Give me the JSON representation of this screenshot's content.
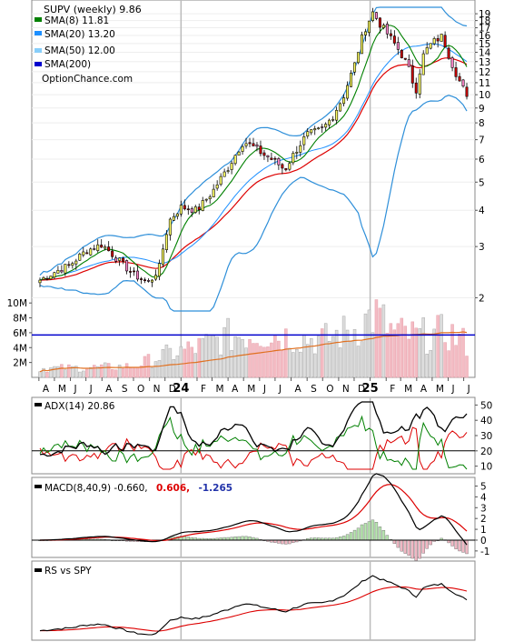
{
  "chart_data": [
    {
      "type": "candlestick",
      "panel": "price",
      "title": "SUPV (weekly) 9.86",
      "watermark": "OptionChance.com",
      "legend": [
        {
          "label": "SMA(8) 11.81",
          "color": "#008000"
        },
        {
          "label": "SMA(20) 13.20",
          "color": "#1e90ff"
        },
        {
          "label": "SMA(50) 12.00",
          "color": "#87cefa"
        },
        {
          "label": "SMA(200)",
          "color": "#0000cd"
        }
      ],
      "legend_placement": "top-left",
      "y_axis_side": "right",
      "ylim": [
        1.8,
        20.0
      ],
      "yticks": [
        2,
        3,
        4,
        5,
        6,
        7,
        8,
        9,
        10,
        11,
        12,
        13,
        14,
        15,
        16,
        17,
        18,
        19
      ],
      "x_labels": [
        "A",
        "M",
        "J",
        "J",
        "A",
        "S",
        "O",
        "N",
        "D",
        "24",
        "F",
        "M",
        "A",
        "M",
        "J",
        "J",
        "A",
        "S",
        "O",
        "N",
        "D",
        "25",
        "F",
        "M",
        "A",
        "M",
        "J",
        "J"
      ],
      "x_months": [
        "2023-04",
        "2023-05",
        "2023-06",
        "2023-07",
        "2023-08",
        "2023-09",
        "2023-10",
        "2023-11",
        "2023-12",
        "2024-01",
        "2024-02",
        "2024-03",
        "2024-04",
        "2024-05",
        "2024-06",
        "2024-07",
        "2024-08",
        "2024-09",
        "2024-10",
        "2024-11",
        "2024-12",
        "2025-01",
        "2025-02",
        "2025-03",
        "2025-04",
        "2025-05",
        "2025-06",
        "2025-07"
      ],
      "close_anchors": [
        [
          "2023-04-03",
          2.3
        ],
        [
          "2023-05-01",
          2.45
        ],
        [
          "2023-06-01",
          2.6
        ],
        [
          "2023-07-01",
          2.9
        ],
        [
          "2023-08-01",
          3.05
        ],
        [
          "2023-09-01",
          2.7
        ],
        [
          "2023-10-01",
          2.4
        ],
        [
          "2023-11-01",
          2.25
        ],
        [
          "2023-11-20",
          2.55
        ],
        [
          "2023-12-10",
          3.7
        ],
        [
          "2024-01-01",
          4.1
        ],
        [
          "2024-02-01",
          4.0
        ],
        [
          "2024-03-01",
          4.6
        ],
        [
          "2024-04-01",
          5.6
        ],
        [
          "2024-05-01",
          6.9
        ],
        [
          "2024-05-20",
          6.6
        ],
        [
          "2024-06-10",
          6.2
        ],
        [
          "2024-07-01",
          5.9
        ],
        [
          "2024-07-20",
          5.5
        ],
        [
          "2024-08-05",
          6.2
        ],
        [
          "2024-09-01",
          7.3
        ],
        [
          "2024-10-01",
          7.6
        ],
        [
          "2024-10-20",
          8.4
        ],
        [
          "2024-11-10",
          9.8
        ],
        [
          "2024-12-01",
          12.5
        ],
        [
          "2024-12-20",
          16.5
        ],
        [
          "2025-01-06",
          19.2
        ],
        [
          "2025-01-20",
          17.5
        ],
        [
          "2025-02-10",
          15.6
        ],
        [
          "2025-03-01",
          13.9
        ],
        [
          "2025-03-15",
          12.5
        ],
        [
          "2025-03-30",
          10.2
        ],
        [
          "2025-04-15",
          13.9
        ],
        [
          "2025-05-01",
          15.1
        ],
        [
          "2025-05-20",
          15.9
        ],
        [
          "2025-06-05",
          13.2
        ],
        [
          "2025-06-20",
          11.4
        ],
        [
          "2025-07-07",
          9.86
        ]
      ],
      "sma_colors": {
        "sma8": "#008000",
        "sma20": "#1e90ff",
        "sma50": "#87cefa",
        "sma200": "#0000cd",
        "ema": "#dd0000",
        "bollinger": "#2e8fd9"
      }
    },
    {
      "type": "bar",
      "panel": "volume",
      "ylim": [
        0,
        11000000
      ],
      "yticks": [
        {
          "value": 2000000,
          "label": "2M"
        },
        {
          "value": 4000000,
          "label": "4M"
        },
        {
          "value": 6000000,
          "label": "6M"
        },
        {
          "value": 8000000,
          "label": "8M"
        },
        {
          "value": 10000000,
          "label": "10M"
        }
      ],
      "y_axis_side": "left",
      "avg_level": 5700000,
      "volume_anchors": [
        [
          "2023-04-01",
          1.2
        ],
        [
          "2023-07-01",
          1.3
        ],
        [
          "2023-10-01",
          1.5
        ],
        [
          "2023-12-01",
          3.0
        ],
        [
          "2024-02-01",
          4.0
        ],
        [
          "2024-04-01",
          5.5
        ],
        [
          "2024-06-01",
          6.0
        ],
        [
          "2024-08-01",
          5.5
        ],
        [
          "2024-10-01",
          5.0
        ],
        [
          "2024-12-01",
          6.5
        ],
        [
          "2025-01-10",
          8.5
        ],
        [
          "2025-02-15",
          6.0
        ],
        [
          "2025-04-01",
          5.5
        ],
        [
          "2025-06-01",
          6.0
        ],
        [
          "2025-07-07",
          4.5
        ]
      ]
    },
    {
      "type": "line",
      "panel": "adx",
      "label": "ADX(14) 20.86",
      "ylim": [
        5,
        55
      ],
      "yticks": [
        10,
        20,
        30,
        40,
        50
      ],
      "reference_line": 20,
      "series_colors": {
        "adx": "#000000",
        "plus_di": "#008000",
        "minus_di": "#dd0000"
      }
    },
    {
      "type": "line",
      "panel": "macd",
      "label": "MACD(8,40,9) -0.660,",
      "signal_label": "0.606,",
      "histogram_label": "-1.265",
      "label_colors": {
        "macd": "#000000",
        "signal": "#dd0000",
        "histogram": "#2233aa"
      },
      "ylim": [
        -1.6,
        5.8
      ],
      "yticks": [
        -1,
        0,
        1,
        2,
        3,
        4,
        5
      ],
      "reference_line": 0
    },
    {
      "type": "line",
      "panel": "rs",
      "label": "RS vs SPY",
      "series_colors": {
        "rs": "#000000",
        "ma": "#dd0000"
      }
    }
  ]
}
